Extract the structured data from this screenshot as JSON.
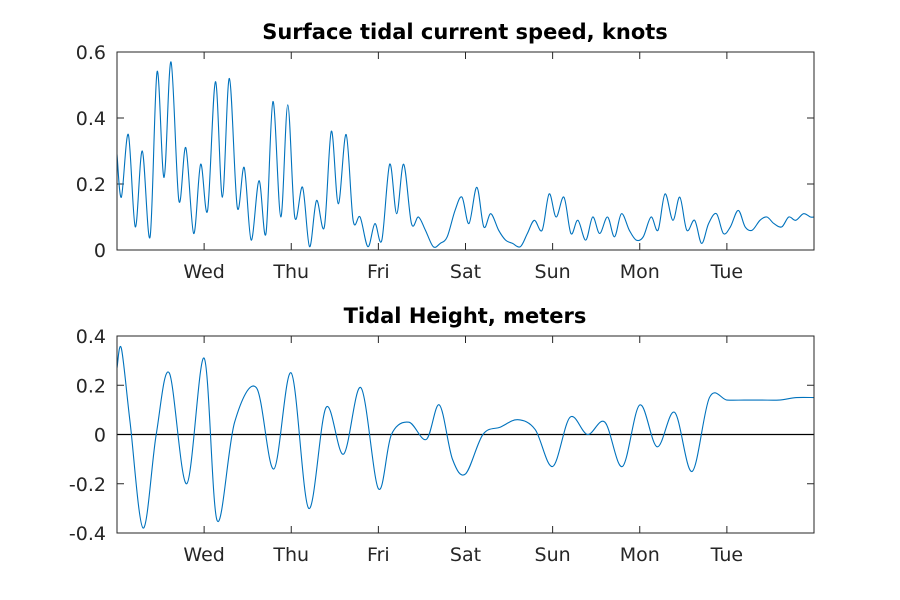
{
  "colors": {
    "series": "#0072bd",
    "axis": "#262626",
    "zero_line": "#000000",
    "background": "#ffffff"
  },
  "chart_data": [
    {
      "type": "line",
      "title": "Surface tidal current speed, knots",
      "xlabel": "",
      "ylabel": "",
      "xlim": [
        0,
        8
      ],
      "ylim": [
        0,
        0.6
      ],
      "yticks": [
        0,
        0.2,
        0.4,
        0.6
      ],
      "ytick_labels": [
        "0",
        "0.2",
        "0.4",
        "0.6"
      ],
      "xticks": [
        1,
        2,
        3,
        4,
        5,
        6,
        7
      ],
      "xtick_labels": [
        "Wed",
        "Thu",
        "Fri",
        "Sat",
        "Sun",
        "Mon",
        "Tue"
      ],
      "grid": false,
      "series": [
        {
          "x": [
            0,
            0.05,
            0.13,
            0.21,
            0.29,
            0.38,
            0.46,
            0.54,
            0.62,
            0.71,
            0.79,
            0.88,
            0.96,
            1.04,
            1.13,
            1.21,
            1.29,
            1.38,
            1.46,
            1.54,
            1.63,
            1.71,
            1.79,
            1.88,
            1.96,
            2.04,
            2.13,
            2.21,
            2.29,
            2.38,
            2.46,
            2.54,
            2.63,
            2.71,
            2.79,
            2.88,
            2.96,
            3.04,
            3.13,
            3.21,
            3.29,
            3.38,
            3.46,
            3.54,
            3.63,
            3.71,
            3.79,
            3.88,
            3.96,
            4.04,
            4.13,
            4.21,
            4.29,
            4.38,
            4.46,
            4.54,
            4.63,
            4.71,
            4.79,
            4.88,
            4.96,
            5.04,
            5.13,
            5.21,
            5.29,
            5.38,
            5.46,
            5.54,
            5.63,
            5.71,
            5.79,
            5.88,
            5.96,
            6.04,
            6.13,
            6.21,
            6.29,
            6.38,
            6.46,
            6.54,
            6.63,
            6.71,
            6.79,
            6.88,
            6.96,
            7.04,
            7.13,
            7.21,
            7.29,
            7.38,
            7.46,
            7.54,
            7.63,
            7.71,
            7.79,
            7.88,
            7.96,
            8
          ],
          "y": [
            0.29,
            0.16,
            0.35,
            0.07,
            0.3,
            0.04,
            0.54,
            0.22,
            0.57,
            0.15,
            0.31,
            0.05,
            0.26,
            0.12,
            0.51,
            0.16,
            0.52,
            0.13,
            0.25,
            0.03,
            0.21,
            0.05,
            0.45,
            0.1,
            0.44,
            0.1,
            0.19,
            0.01,
            0.15,
            0.07,
            0.36,
            0.14,
            0.35,
            0.09,
            0.1,
            0.01,
            0.08,
            0.03,
            0.26,
            0.11,
            0.26,
            0.08,
            0.1,
            0.06,
            0.01,
            0.02,
            0.04,
            0.12,
            0.16,
            0.08,
            0.19,
            0.07,
            0.11,
            0.06,
            0.03,
            0.02,
            0.01,
            0.05,
            0.09,
            0.06,
            0.17,
            0.1,
            0.16,
            0.05,
            0.09,
            0.03,
            0.1,
            0.05,
            0.1,
            0.04,
            0.11,
            0.06,
            0.03,
            0.04,
            0.1,
            0.06,
            0.17,
            0.09,
            0.16,
            0.06,
            0.09,
            0.02,
            0.08,
            0.11,
            0.05,
            0.07,
            0.12,
            0.07,
            0.06,
            0.09,
            0.1,
            0.08,
            0.07,
            0.1,
            0.09,
            0.11,
            0.1,
            0.1
          ]
        }
      ]
    },
    {
      "type": "line",
      "title": "Tidal Height, meters",
      "xlabel": "",
      "ylabel": "",
      "xlim": [
        0,
        8
      ],
      "ylim": [
        -0.4,
        0.4
      ],
      "yticks": [
        -0.4,
        -0.2,
        0,
        0.2,
        0.4
      ],
      "ytick_labels": [
        "-0.4",
        "-0.2",
        "0",
        "0.2",
        "0.4"
      ],
      "xticks": [
        1,
        2,
        3,
        4,
        5,
        6,
        7
      ],
      "xtick_labels": [
        "Wed",
        "Thu",
        "Fri",
        "Sat",
        "Sun",
        "Mon",
        "Tue"
      ],
      "grid": false,
      "zero_line": true,
      "series": [
        {
          "x": [
            0,
            0.05,
            0.15,
            0.3,
            0.45,
            0.6,
            0.8,
            1.0,
            1.15,
            1.35,
            1.6,
            1.8,
            2.0,
            2.2,
            2.4,
            2.6,
            2.8,
            3.0,
            3.15,
            3.35,
            3.55,
            3.7,
            3.85,
            4.0,
            4.2,
            4.4,
            4.6,
            4.8,
            5.0,
            5.2,
            5.4,
            5.6,
            5.8,
            6.0,
            6.2,
            6.4,
            6.6,
            6.8,
            7.0,
            7.2,
            7.4,
            7.6,
            7.8,
            8
          ],
          "y": [
            0.27,
            0.35,
            0.05,
            -0.38,
            0.0,
            0.25,
            -0.2,
            0.31,
            -0.35,
            0.05,
            0.19,
            -0.14,
            0.25,
            -0.3,
            0.11,
            -0.08,
            0.19,
            -0.22,
            0.0,
            0.05,
            -0.02,
            0.12,
            -0.1,
            -0.16,
            0.0,
            0.03,
            0.06,
            0.02,
            -0.13,
            0.07,
            0.0,
            0.05,
            -0.13,
            0.12,
            -0.05,
            0.09,
            -0.15,
            0.15,
            0.14,
            0.14,
            0.14,
            0.14,
            0.15,
            0.15
          ]
        }
      ]
    }
  ]
}
